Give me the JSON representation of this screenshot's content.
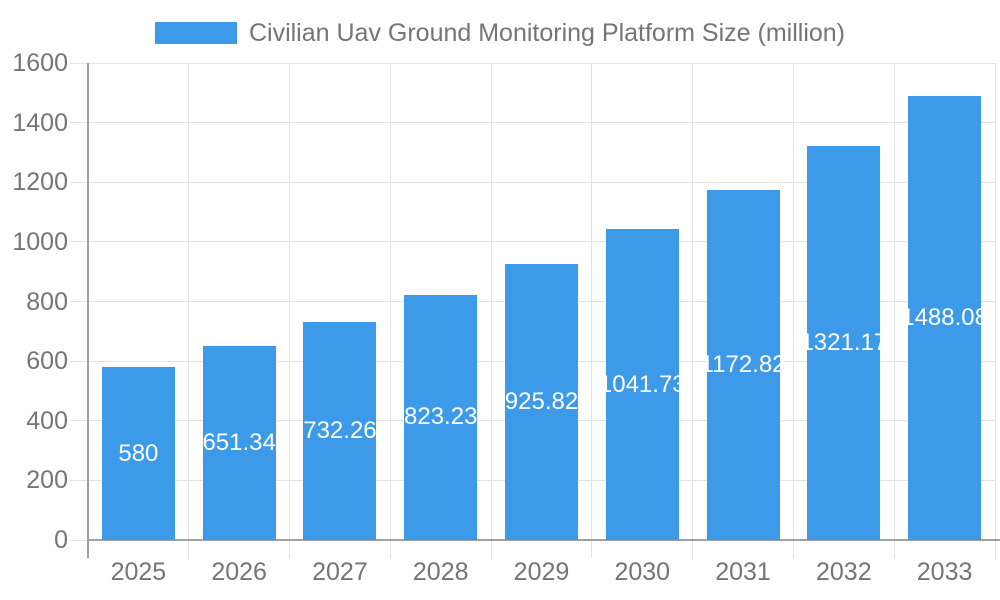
{
  "legend": {
    "label": "Civilian Uav Ground Monitoring Platform Size (million)"
  },
  "colors": {
    "bar": "#3D9AE9",
    "grid": "#E2E2E2",
    "axis": "#A0A0A0",
    "text": "#757575",
    "value_label": "#FFFFFF",
    "background": "#FFFFFF"
  },
  "chart_data": {
    "type": "bar",
    "title": "Civilian Uav Ground Monitoring Platform Size (million)",
    "categories": [
      "2025",
      "2026",
      "2027",
      "2028",
      "2029",
      "2030",
      "2031",
      "2032",
      "2033"
    ],
    "values": [
      580,
      651.34,
      732.26,
      823.23,
      925.82,
      1041.73,
      1172.82,
      1321.17,
      1488.08
    ],
    "value_labels": [
      "580",
      "651.34",
      "732.26",
      "823.23",
      "925.82",
      "1041.73",
      "1172.82",
      "1321.17",
      "1488.08"
    ],
    "xlabel": "",
    "ylabel": "",
    "ylim": [
      0,
      1600
    ],
    "yticks": [
      0,
      200,
      400,
      600,
      800,
      1000,
      1200,
      1400,
      1600
    ],
    "grid": true,
    "legend_position": "top-center",
    "bar_label_position": "inside-center"
  }
}
